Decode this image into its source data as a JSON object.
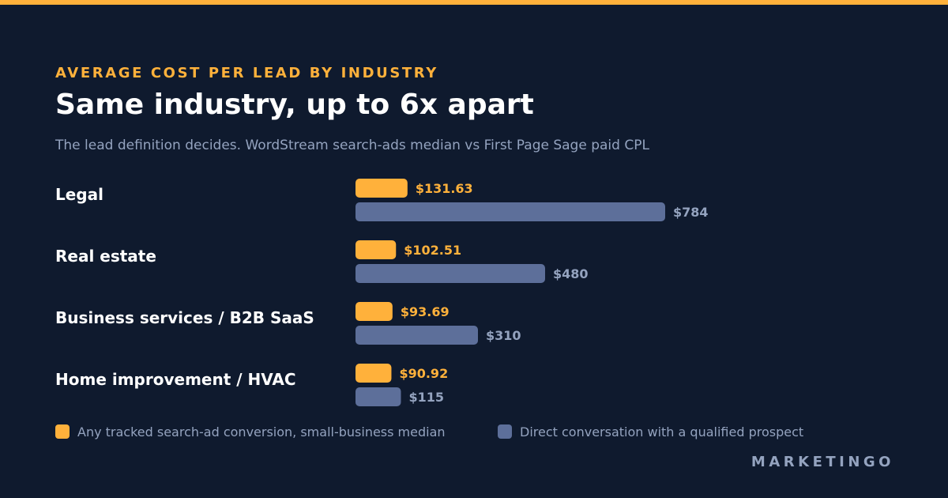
{
  "header": {
    "kicker": "AVERAGE COST PER LEAD BY INDUSTRY",
    "title": "Same industry, up to 6x apart",
    "subtitle": "The lead definition decides. WordStream search-ads median vs First Page Sage paid CPL"
  },
  "colors": {
    "accent": "#ffb13b",
    "secondary": "#5d6f9a",
    "background": "#0f1a2e",
    "muted_text": "#94a3bf"
  },
  "chart_data": {
    "type": "bar",
    "orientation": "horizontal",
    "categories": [
      "Legal",
      "Real estate",
      "Business services / B2B SaaS",
      "Home improvement / HVAC"
    ],
    "series": [
      {
        "name": "Any tracked search-ad conversion, small-business median",
        "color": "#ffb13b",
        "values": [
          131.63,
          102.51,
          93.69,
          90.92
        ],
        "labels": [
          "$131.63",
          "$102.51",
          "$93.69",
          "$90.92"
        ]
      },
      {
        "name": "Direct conversation with a qualified prospect",
        "color": "#5d6f9a",
        "values": [
          784,
          480,
          310,
          115
        ],
        "labels": [
          "$784",
          "$480",
          "$310",
          "$115"
        ]
      }
    ],
    "xlim": [
      0,
      784
    ],
    "grid": false,
    "legend_position": "bottom-left"
  },
  "brand": "MARKETINGO"
}
